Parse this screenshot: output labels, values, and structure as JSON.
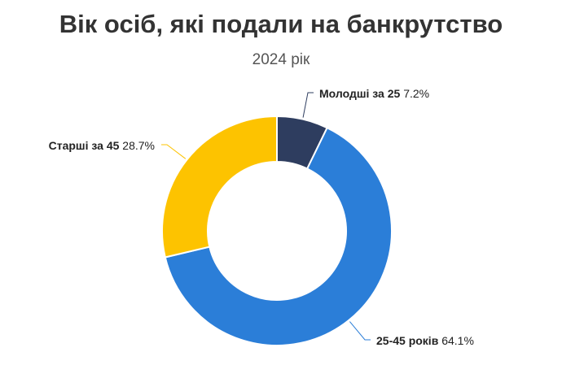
{
  "chart_data": {
    "type": "pie",
    "title": "Вік осіб, які подали на банкрутство",
    "subtitle": "2024 рік",
    "slices": [
      {
        "label": "Молодші за 25",
        "value": 7.2,
        "value_label": "7.2%",
        "color": "#2e3d5f"
      },
      {
        "label": "25-45 років",
        "value": 64.1,
        "value_label": "64.1%",
        "color": "#2b7ed8"
      },
      {
        "label": "Старші за 45",
        "value": 28.7,
        "value_label": "28.7%",
        "color": "#fdc300"
      }
    ]
  }
}
